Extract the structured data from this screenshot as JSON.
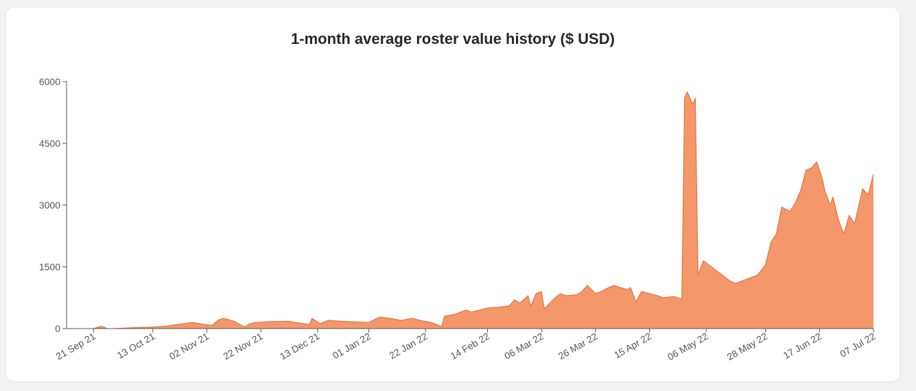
{
  "chart_data": {
    "type": "area",
    "title": "1-month average roster value history ($ USD)",
    "xlabel": "",
    "ylabel": "",
    "ylim": [
      0,
      6000
    ],
    "y_ticks": [
      "0",
      "1500",
      "3000",
      "4500",
      "6000"
    ],
    "x_ticks": [
      "21 Sep 21",
      "13 Oct 21",
      "02 Nov 21",
      "22 Nov 21",
      "13 Dec 21",
      "01 Jan 22",
      "22 Jan 22",
      "14 Feb 22",
      "06 Mar 22",
      "26 Mar 22",
      "15 Apr 22",
      "06 May 22",
      "28 May 22",
      "17 Jun 22",
      "07 Jul 22"
    ],
    "x_range": [
      "2021-09-11",
      "2022-07-07"
    ],
    "grid": false,
    "legend": "none",
    "fill_color": "#f4976b",
    "line_color": "#e4672e",
    "series": [
      {
        "x": [
          "2021-09-11",
          "2021-09-21",
          "2021-09-24",
          "2021-09-26",
          "2021-09-28",
          "2021-10-05",
          "2021-10-13",
          "2021-10-18",
          "2021-10-22",
          "2021-10-28",
          "2021-11-01",
          "2021-11-04",
          "2021-11-06",
          "2021-11-08",
          "2021-11-10",
          "2021-11-12",
          "2021-11-16",
          "2021-11-18",
          "2021-11-20",
          "2021-11-26",
          "2021-12-02",
          "2021-12-07",
          "2021-12-10",
          "2021-12-11",
          "2021-12-14",
          "2021-12-15",
          "2021-12-17",
          "2021-12-22",
          "2021-12-28",
          "2022-01-01",
          "2022-01-05",
          "2022-01-09",
          "2022-01-13",
          "2022-01-17",
          "2022-01-20",
          "2022-01-24",
          "2022-01-28",
          "2022-01-29",
          "2022-02-02",
          "2022-02-06",
          "2022-02-08",
          "2022-02-14",
          "2022-02-18",
          "2022-02-22",
          "2022-02-24",
          "2022-02-26",
          "2022-03-01",
          "2022-03-02",
          "2022-03-04",
          "2022-03-06",
          "2022-03-07",
          "2022-03-11",
          "2022-03-13",
          "2022-03-15",
          "2022-03-19",
          "2022-03-21",
          "2022-03-23",
          "2022-03-26",
          "2022-03-28",
          "2022-03-31",
          "2022-04-02",
          "2022-04-04",
          "2022-04-07",
          "2022-04-08",
          "2022-04-10",
          "2022-04-12",
          "2022-04-15",
          "2022-04-18",
          "2022-04-20",
          "2022-04-24",
          "2022-04-27",
          "2022-04-28",
          "2022-04-29",
          "2022-05-01",
          "2022-05-02",
          "2022-05-03",
          "2022-05-05",
          "2022-05-07",
          "2022-05-11",
          "2022-05-15",
          "2022-05-17",
          "2022-05-21",
          "2022-05-25",
          "2022-05-28",
          "2022-05-30",
          "2022-06-01",
          "2022-06-03",
          "2022-06-06",
          "2022-06-08",
          "2022-06-10",
          "2022-06-12",
          "2022-06-14",
          "2022-06-16",
          "2022-06-17",
          "2022-06-18",
          "2022-06-19",
          "2022-06-21",
          "2022-06-22",
          "2022-06-24",
          "2022-06-26",
          "2022-06-28",
          "2022-06-30",
          "2022-07-03",
          "2022-07-05",
          "2022-07-07"
        ],
        "y": [
          0,
          0,
          60,
          0,
          0,
          20,
          40,
          60,
          100,
          150,
          100,
          80,
          200,
          250,
          220,
          180,
          40,
          120,
          150,
          170,
          180,
          130,
          100,
          250,
          120,
          150,
          200,
          180,
          160,
          150,
          280,
          250,
          200,
          250,
          200,
          150,
          50,
          300,
          350,
          450,
          400,
          500,
          520,
          550,
          700,
          620,
          800,
          550,
          850,
          900,
          480,
          750,
          850,
          800,
          820,
          900,
          1050,
          850,
          900,
          1000,
          1050,
          1000,
          950,
          1000,
          650,
          900,
          850,
          800,
          750,
          780,
          720,
          5600,
          5750,
          5450,
          5600,
          1300,
          1650,
          1550,
          1350,
          1150,
          1100,
          1200,
          1300,
          1550,
          2100,
          2300,
          2950,
          2850,
          3050,
          3350,
          3850,
          3900,
          4050,
          3850,
          3650,
          3350,
          3000,
          3200,
          2650,
          2300,
          2750,
          2550,
          3400,
          3250,
          3750
        ]
      }
    ]
  }
}
